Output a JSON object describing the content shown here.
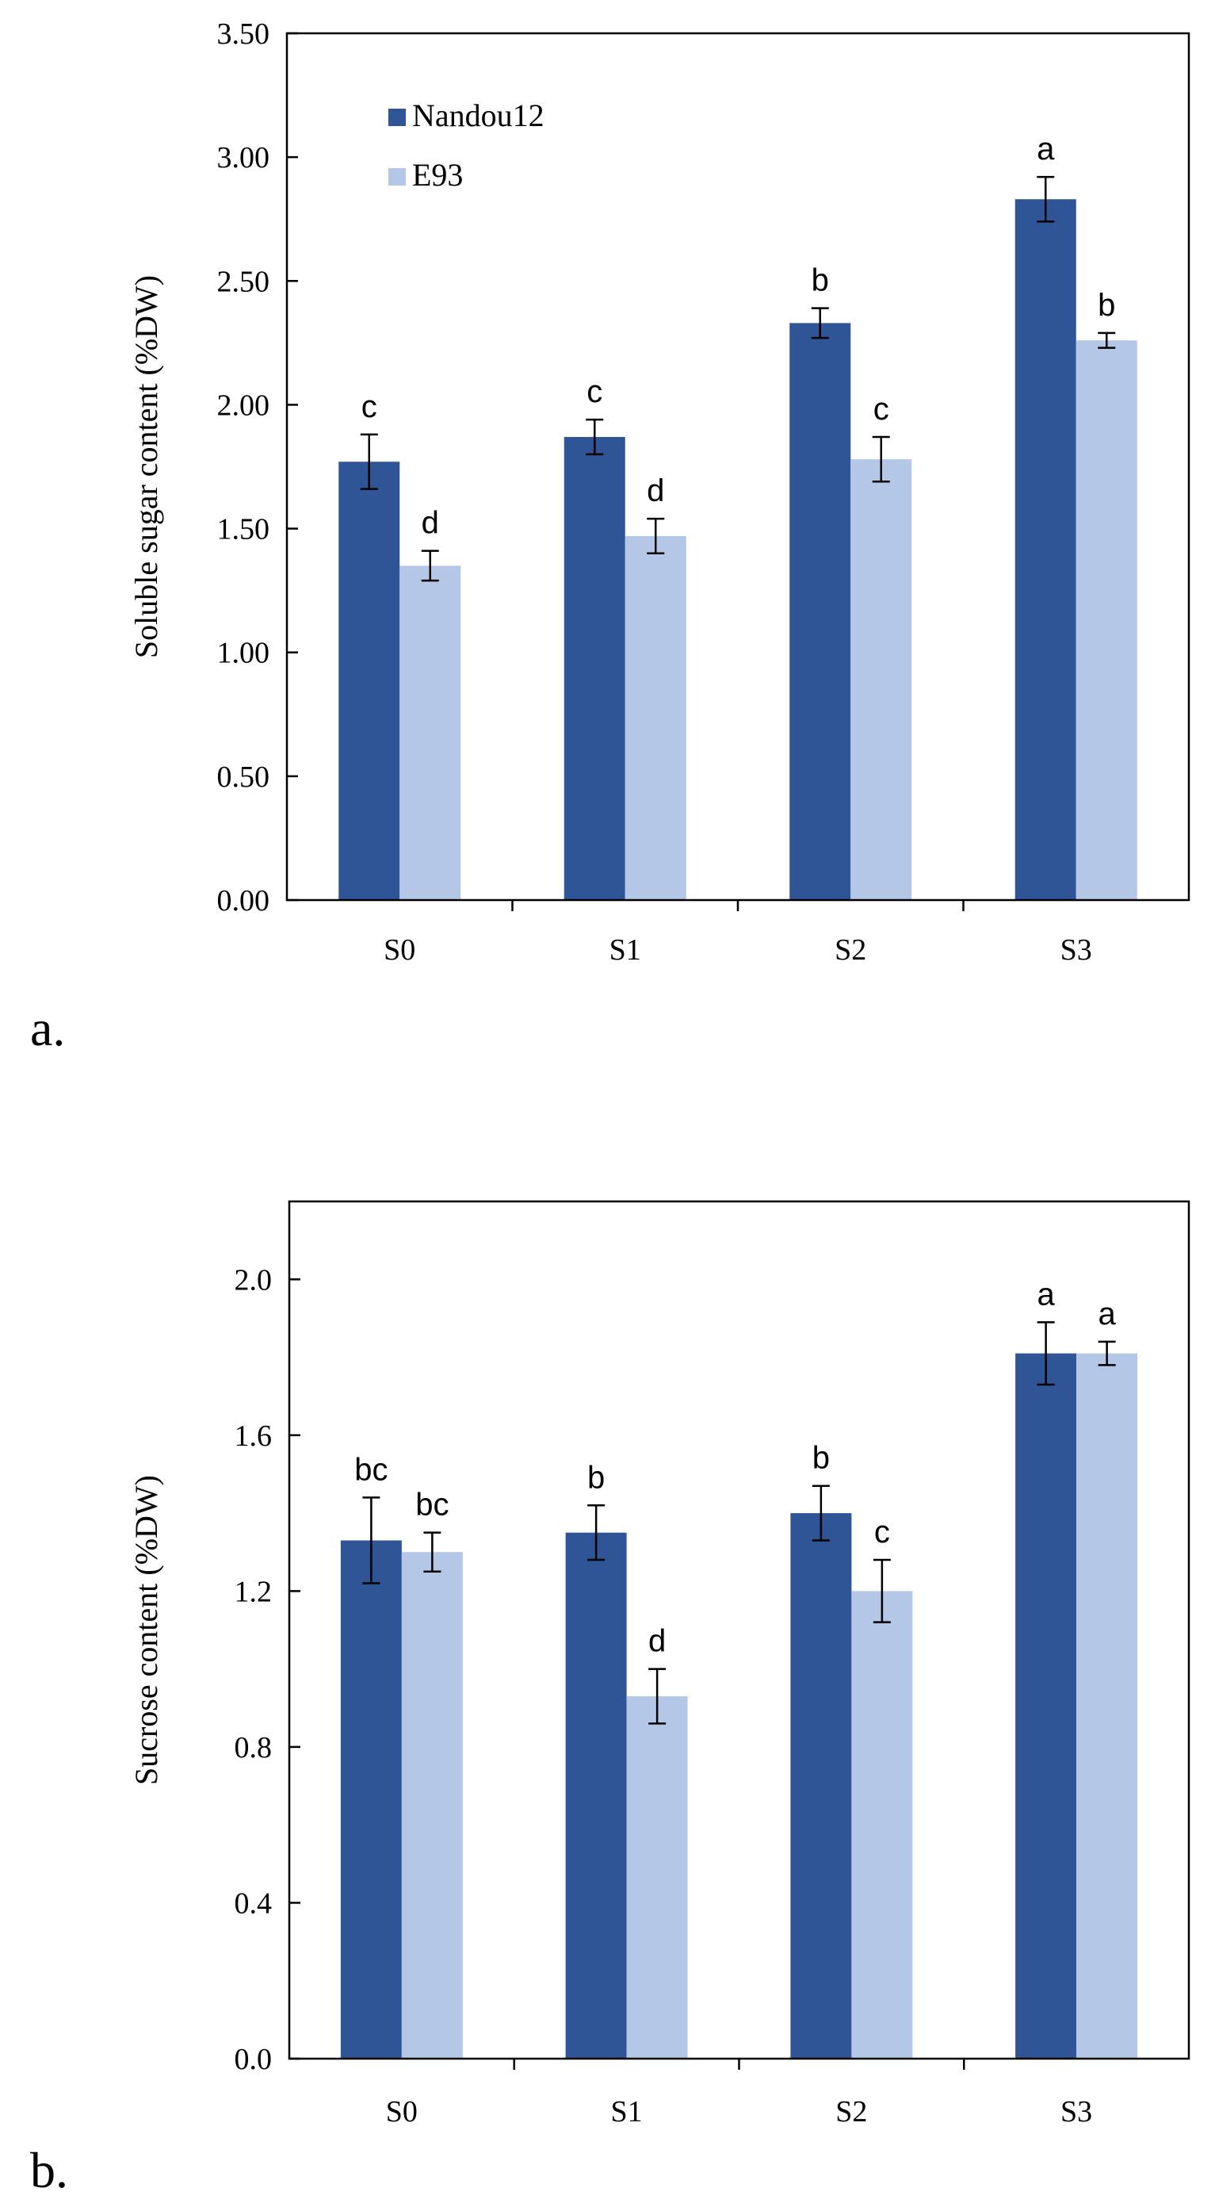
{
  "colors": {
    "nandou": "#2f5597",
    "e93": "#b4c7e7"
  },
  "chart_data": [
    {
      "panel": "a.",
      "type": "bar",
      "ylabel": "Soluble sugar content (%DW)",
      "categories": [
        "S0",
        "S1",
        "S2",
        "S3"
      ],
      "ylim": [
        0,
        3.5
      ],
      "yticks": [
        "0.00",
        "0.50",
        "1.00",
        "1.50",
        "2.00",
        "2.50",
        "3.00",
        "3.50"
      ],
      "legend": [
        "Nandou12",
        "E93"
      ],
      "series": [
        {
          "name": "Nandou12",
          "values": [
            1.77,
            1.87,
            2.33,
            2.83
          ],
          "errors": [
            0.11,
            0.07,
            0.06,
            0.09
          ],
          "letters": [
            "c",
            "c",
            "b",
            "a"
          ]
        },
        {
          "name": "E93",
          "values": [
            1.35,
            1.47,
            1.78,
            2.26
          ],
          "errors": [
            0.06,
            0.07,
            0.09,
            0.03
          ],
          "letters": [
            "d",
            "d",
            "c",
            "b"
          ]
        }
      ]
    },
    {
      "panel": "b.",
      "type": "bar",
      "ylabel": "Sucrose content (%DW)",
      "categories": [
        "S0",
        "S1",
        "S2",
        "S3"
      ],
      "ylim": [
        0,
        2.2
      ],
      "yticks": [
        "0.0",
        "0.4",
        "0.8",
        "1.2",
        "1.6",
        "2.0"
      ],
      "series": [
        {
          "name": "Nandou12",
          "values": [
            1.33,
            1.35,
            1.4,
            1.81
          ],
          "errors": [
            0.11,
            0.07,
            0.07,
            0.08
          ],
          "letters": [
            "bc",
            "b",
            "b",
            "a"
          ]
        },
        {
          "name": "E93",
          "values": [
            1.3,
            0.93,
            1.2,
            1.81
          ],
          "errors": [
            0.05,
            0.07,
            0.08,
            0.03
          ],
          "letters": [
            "bc",
            "d",
            "c",
            "a"
          ]
        }
      ]
    }
  ]
}
